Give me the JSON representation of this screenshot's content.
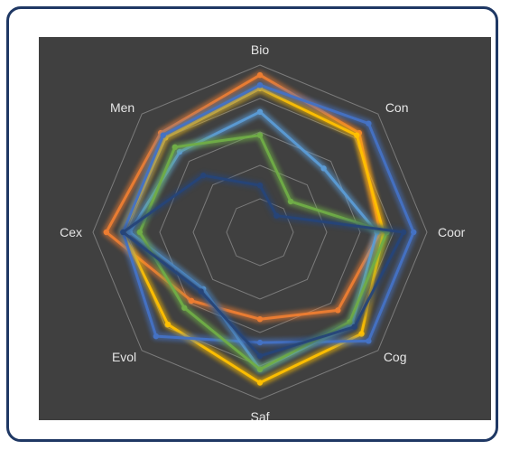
{
  "chart_data": {
    "type": "radar",
    "categories": [
      "Bio",
      "Con",
      "Coor",
      "Cog",
      "Saf",
      "Evol",
      "Cex",
      "Men"
    ],
    "rlim": [
      0,
      5
    ],
    "rings": 5,
    "grid": true,
    "background_color": "#404040",
    "series": [
      {
        "color": "#ed7d31",
        "values": [
          4.7,
          4.2,
          3.6,
          3.3,
          2.6,
          2.9,
          4.6,
          4.2
        ]
      },
      {
        "color": "#ffc000",
        "values": [
          4.3,
          4.1,
          3.7,
          4.3,
          4.5,
          3.9,
          4.1,
          4.0
        ]
      },
      {
        "color": "#4472c4",
        "values": [
          4.4,
          4.6,
          4.6,
          4.6,
          3.3,
          4.4,
          4.1,
          4.1
        ]
      },
      {
        "color": "#5b9bd5",
        "values": [
          3.6,
          2.7,
          3.5,
          3.9,
          4.1,
          2.4,
          3.9,
          3.4
        ]
      },
      {
        "color": "#70ad47",
        "values": [
          2.9,
          1.3,
          3.8,
          3.8,
          4.1,
          3.2,
          3.6,
          3.6
        ]
      },
      {
        "color": "#264478",
        "values": [
          1.4,
          0.7,
          4.3,
          4.0,
          3.7,
          2.5,
          4.1,
          2.4
        ]
      }
    ]
  }
}
